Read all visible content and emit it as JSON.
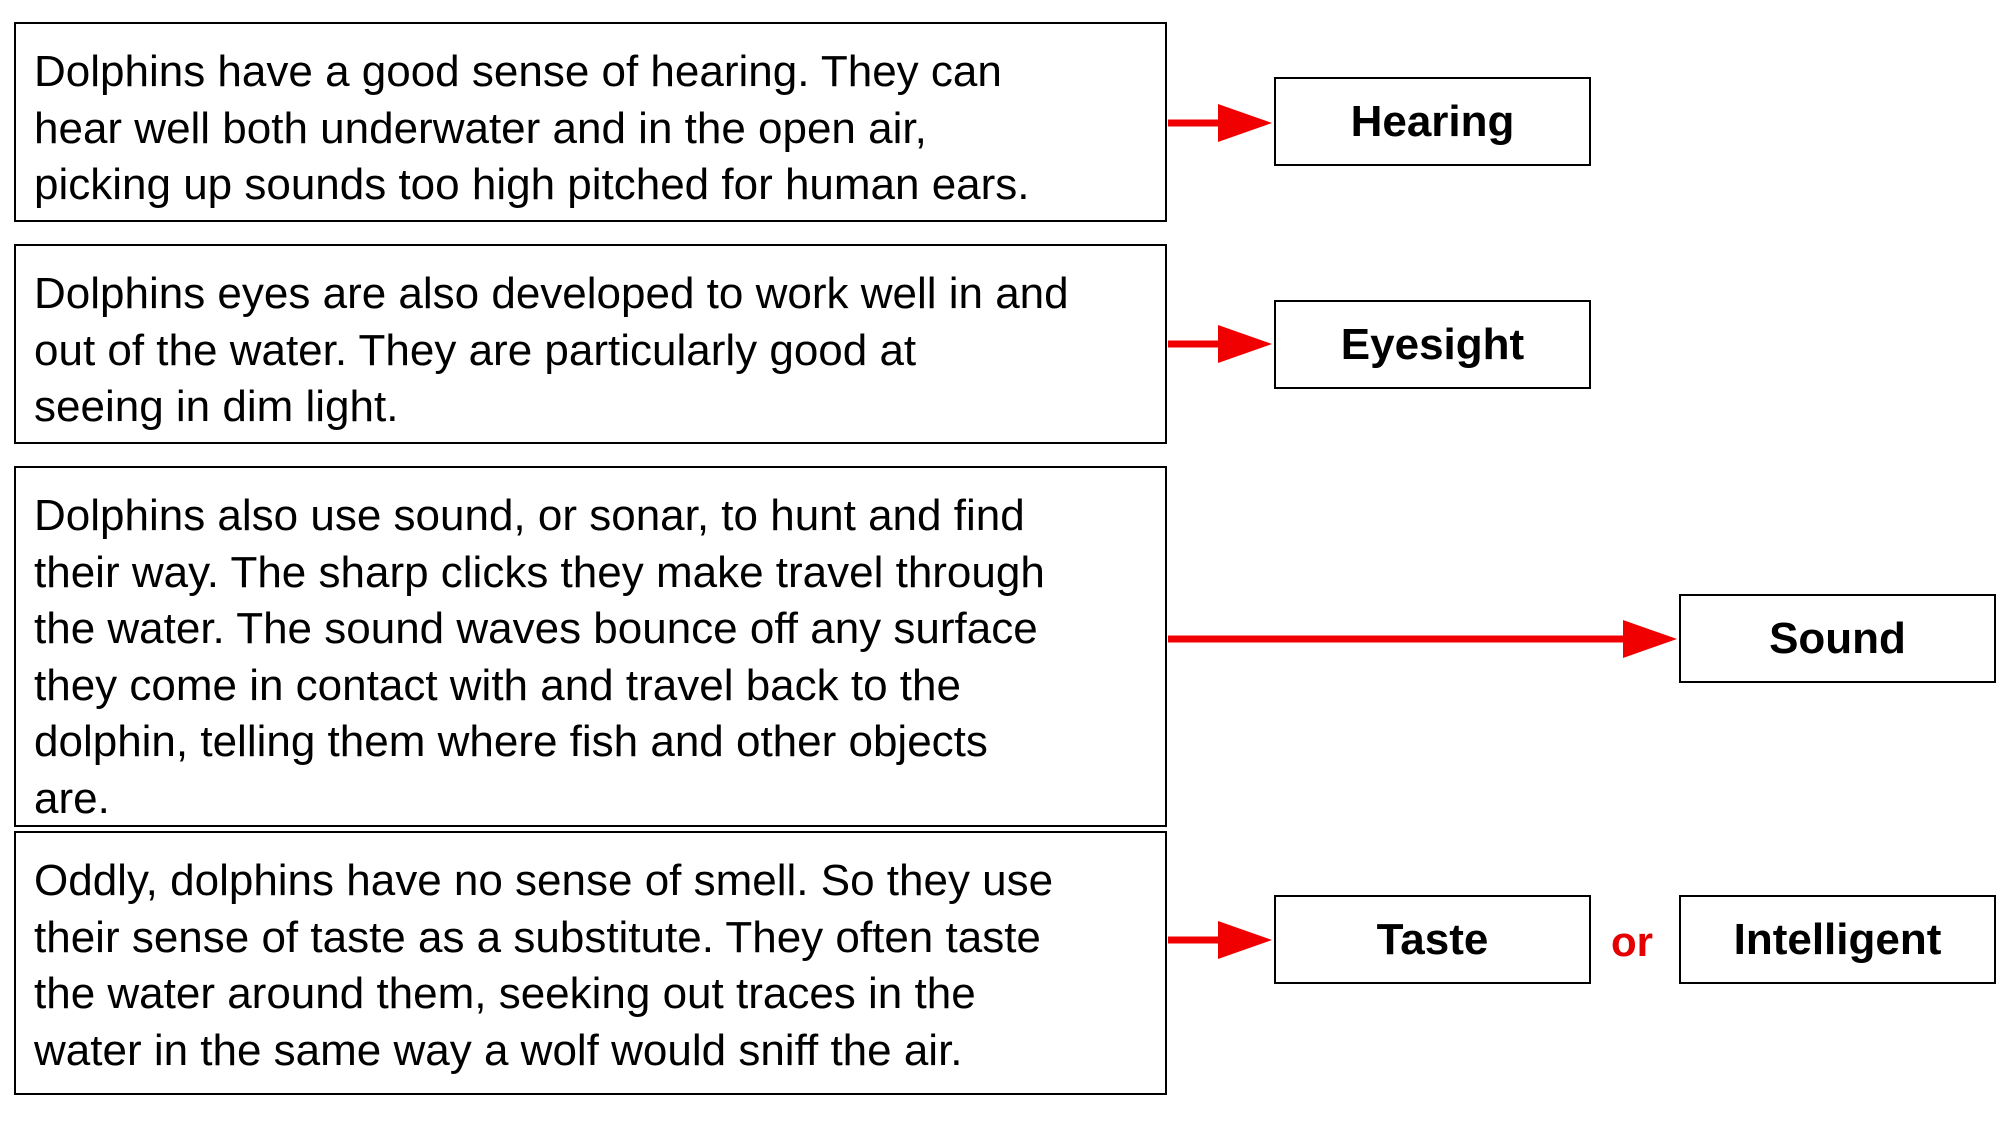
{
  "passages": [
    {
      "lines": [
        "Dolphins have a good sense of hearing.  They can",
        "hear well both underwater and in the open air,",
        "picking up sounds too high pitched for human ears."
      ]
    },
    {
      "lines": [
        "Dolphins eyes are also developed to work well in and",
        "out of the water.  They are particularly good at",
        "seeing in dim light."
      ]
    },
    {
      "lines": [
        "Dolphins also use sound, or sonar, to hunt and find",
        "their way.  The sharp clicks they make travel through",
        "the water.  The sound waves bounce off any surface",
        "they come in contact with and travel back to the",
        "dolphin, telling them where fish and other objects",
        "are."
      ]
    },
    {
      "lines": [
        "Oddly, dolphins have no sense of smell.  So they use",
        "their sense of taste as a substitute.  They often taste",
        "the water around them, seeking out traces in the",
        "water in the same way a wolf would sniff the air."
      ]
    }
  ],
  "labels": {
    "hearing": "Hearing",
    "eyesight": "Eyesight",
    "sound": "Sound",
    "taste": "Taste",
    "intelligent": "Intelligent",
    "or": "or"
  },
  "colors": {
    "arrow": "#f00000",
    "or_text": "#e40000"
  }
}
